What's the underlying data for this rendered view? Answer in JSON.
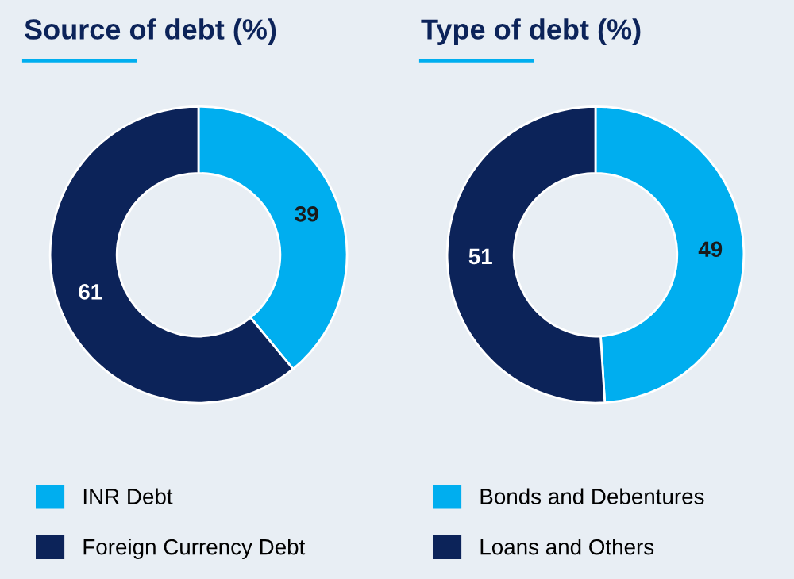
{
  "chart_data": [
    {
      "type": "donut",
      "title": "Source of debt (%)",
      "categories": [
        "INR Debt",
        "Foreign Currency Debt"
      ],
      "values": [
        39,
        61
      ],
      "colors": [
        "#00aeef",
        "#0c2359"
      ],
      "data_labels": true,
      "legend": "bottom"
    },
    {
      "type": "donut",
      "title": "Type of debt (%)",
      "categories": [
        "Bonds and Debentures",
        "Loans and Others"
      ],
      "values": [
        49,
        51
      ],
      "colors": [
        "#00aeef",
        "#0c2359"
      ],
      "data_labels": true,
      "legend": "bottom"
    }
  ]
}
